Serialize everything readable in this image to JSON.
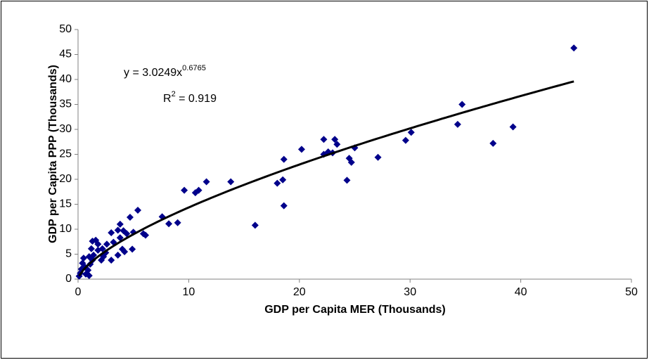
{
  "chart_data": {
    "type": "scatter",
    "x_label": "GDP per Capita MER (Thousands)",
    "y_label": "GDP per Capita PPP (Thousands)",
    "annotation": {
      "equation": "y = 3.0249x",
      "exponent": "0.6765",
      "r2_base": "R",
      "r2_sup": "2",
      "r2_value": " = 0.919"
    },
    "trendline": {
      "type": "power",
      "coefficient": 3.0249,
      "exponent": 0.6765,
      "color": "#000000"
    },
    "color": "#00008b",
    "xlim": [
      0,
      50
    ],
    "xticks": [
      0,
      10,
      20,
      30,
      40,
      50
    ],
    "ylim": [
      0,
      50
    ],
    "yticks": [
      0,
      5,
      10,
      15,
      20,
      25,
      30,
      35,
      40,
      45,
      50
    ],
    "x": [
      44.8,
      34.7,
      34.3,
      39.3,
      37.5,
      30.1,
      29.6,
      27.1,
      25.0,
      24.7,
      24.5,
      24.3,
      23.2,
      23.4,
      23.0,
      22.6,
      22.2,
      22.2,
      20.2,
      18.6,
      18.5,
      18.0,
      18.6,
      16.0,
      13.8,
      11.6,
      10.9,
      10.6,
      9.6,
      9.0,
      8.2,
      7.6,
      6.1,
      5.9,
      5.4,
      4.7,
      5.0,
      4.9,
      4.4,
      4.1,
      3.8,
      3.8,
      3.6,
      4.0,
      4.2,
      3.6,
      3.2,
      3.0,
      3.0,
      2.6,
      2.2,
      2.1,
      1.8,
      1.6,
      1.8,
      1.3,
      1.2,
      1.3,
      1.0,
      1.1,
      0.9,
      1.0,
      0.6,
      0.5,
      0.4,
      0.3,
      0.2,
      0.1,
      0.7,
      1.4,
      2.3,
      2.5
    ],
    "values": [
      46.3,
      35.0,
      31.0,
      30.5,
      27.2,
      29.4,
      27.8,
      24.4,
      26.3,
      23.4,
      24.2,
      19.8,
      28.0,
      27.0,
      25.3,
      25.5,
      28.0,
      25.0,
      26.0,
      24.0,
      19.9,
      19.2,
      14.7,
      10.8,
      19.5,
      19.5,
      17.8,
      17.3,
      17.8,
      11.3,
      11.1,
      12.5,
      8.8,
      9.1,
      13.8,
      12.4,
      9.4,
      6.0,
      9.1,
      9.7,
      11.0,
      8.3,
      9.8,
      6.0,
      5.5,
      4.8,
      7.4,
      9.3,
      3.8,
      7.0,
      6.1,
      3.8,
      5.8,
      7.8,
      7.0,
      7.6,
      6.1,
      3.8,
      4.5,
      3.0,
      1.8,
      0.7,
      2.5,
      4.2,
      3.2,
      2.0,
      1.2,
      0.6,
      1.0,
      4.8,
      4.5,
      5.3
    ]
  }
}
